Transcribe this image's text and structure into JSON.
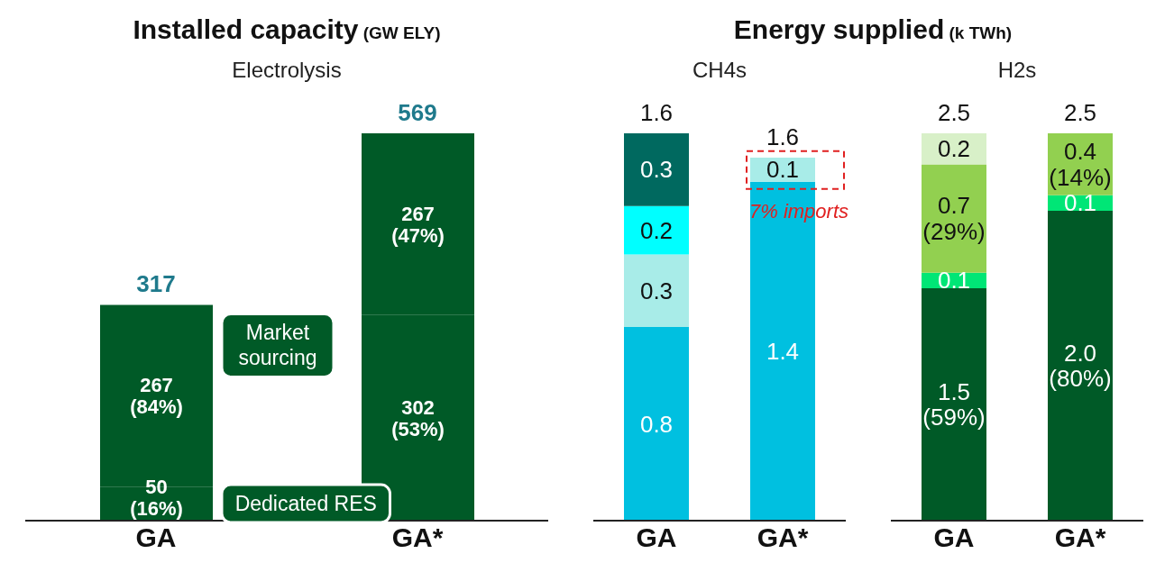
{
  "chart_data": [
    {
      "type": "bar",
      "title": "Installed capacity (GW ELY)",
      "subtitle": "Electrolysis",
      "categories": [
        "GA",
        "GA*"
      ],
      "stacked": true,
      "series": [
        {
          "name": "Dedicated RES",
          "color": "#005a27",
          "values": [
            50,
            302
          ],
          "value_labels": [
            "50\n(16%)",
            "302\n(53%)"
          ]
        },
        {
          "name": "Market sourcing",
          "color": "#005a27",
          "values": [
            267,
            267
          ],
          "value_labels": [
            "267\n(84%)",
            "267\n(47%)"
          ]
        }
      ],
      "totals": [
        "317",
        "569"
      ]
    },
    {
      "type": "bar",
      "title": "Energy supplied (k TWh)",
      "subtitle": "CH4s",
      "categories": [
        "GA",
        "GA*"
      ],
      "stacked": true,
      "series": [
        {
          "color": "#00c0e0",
          "values": [
            0.8,
            1.4
          ],
          "value_labels": [
            "0.8",
            "1.4"
          ]
        },
        {
          "color": "#a8ece8",
          "values": [
            0.3,
            0.1
          ],
          "value_labels": [
            "0.3",
            "0.1"
          ]
        },
        {
          "color": "#00ffff",
          "values": [
            0.2,
            null
          ],
          "value_labels": [
            "0.2",
            null
          ]
        },
        {
          "color": "#00695f",
          "values": [
            0.3,
            null
          ],
          "value_labels": [
            "0.3",
            null
          ]
        }
      ],
      "totals": [
        "1.6",
        "1.6"
      ],
      "annotations": [
        {
          "text": "7% imports",
          "x": "GA*",
          "y": 1.4
        }
      ]
    },
    {
      "type": "bar",
      "subtitle": "H2s",
      "categories": [
        "GA",
        "GA*"
      ],
      "stacked": true,
      "series": [
        {
          "color": "#005a27",
          "values": [
            1.5,
            2.0
          ],
          "value_labels": [
            "1.5\n(59%)",
            "2.0\n(80%)"
          ]
        },
        {
          "color": "#00e676",
          "values": [
            0.1,
            0.1
          ],
          "value_labels": [
            "0.1",
            "0.1"
          ]
        },
        {
          "color": "#92d050",
          "values": [
            0.7,
            0.4
          ],
          "value_labels": [
            "0.7\n(29%)",
            "0.4\n(14%)"
          ]
        },
        {
          "color": "#d8f0c8",
          "values": [
            0.2,
            null
          ],
          "value_labels": [
            "0.2",
            null
          ]
        }
      ],
      "totals": [
        "2.5",
        "2.5"
      ]
    }
  ]
}
